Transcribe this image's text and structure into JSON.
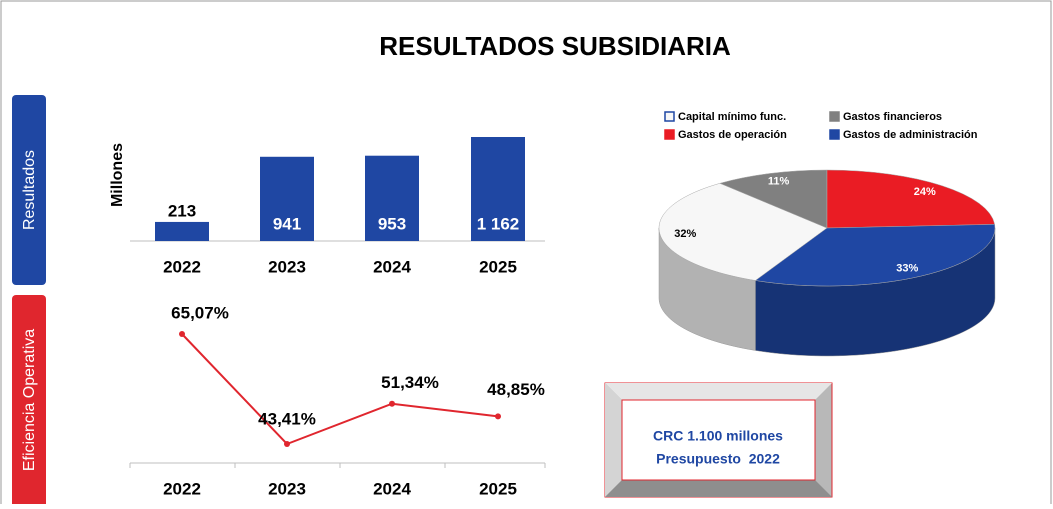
{
  "title": "RESULTADOS SUBSIDIARIA",
  "side_labels": [
    "Resultados",
    "Eficiencia Operativa"
  ],
  "box": [
    "CRC 1.100 millones",
    "Presupuesto  2022"
  ],
  "chart_data": [
    {
      "type": "bar",
      "y_label": "Millones",
      "categories": [
        "2022",
        "2023",
        "2024",
        "2025"
      ],
      "values": [
        213,
        941,
        953,
        1162
      ],
      "value_labels": [
        "213",
        "941",
        "953",
        "1 162"
      ],
      "color": "#1f47a3"
    },
    {
      "type": "line",
      "categories": [
        "2022",
        "2023",
        "2024",
        "2025"
      ],
      "values": [
        65.07,
        43.41,
        51.34,
        48.85
      ],
      "value_labels": [
        "65,07%",
        "43,41%",
        "51,34%",
        "48,85%"
      ],
      "color": "#e0262e"
    },
    {
      "type": "pie",
      "categories": [
        "Capital mínimo func.",
        "Gastos financieros",
        "Gastos de operación",
        "Gastos de administración"
      ],
      "values": [
        32,
        11,
        24,
        33
      ],
      "value_labels": [
        "32%",
        "11%",
        "24%",
        "33%"
      ],
      "colors": [
        "#f7f7f7",
        "#808080",
        "#ea1c24",
        "#1f47a3"
      ],
      "legend": "top"
    }
  ]
}
